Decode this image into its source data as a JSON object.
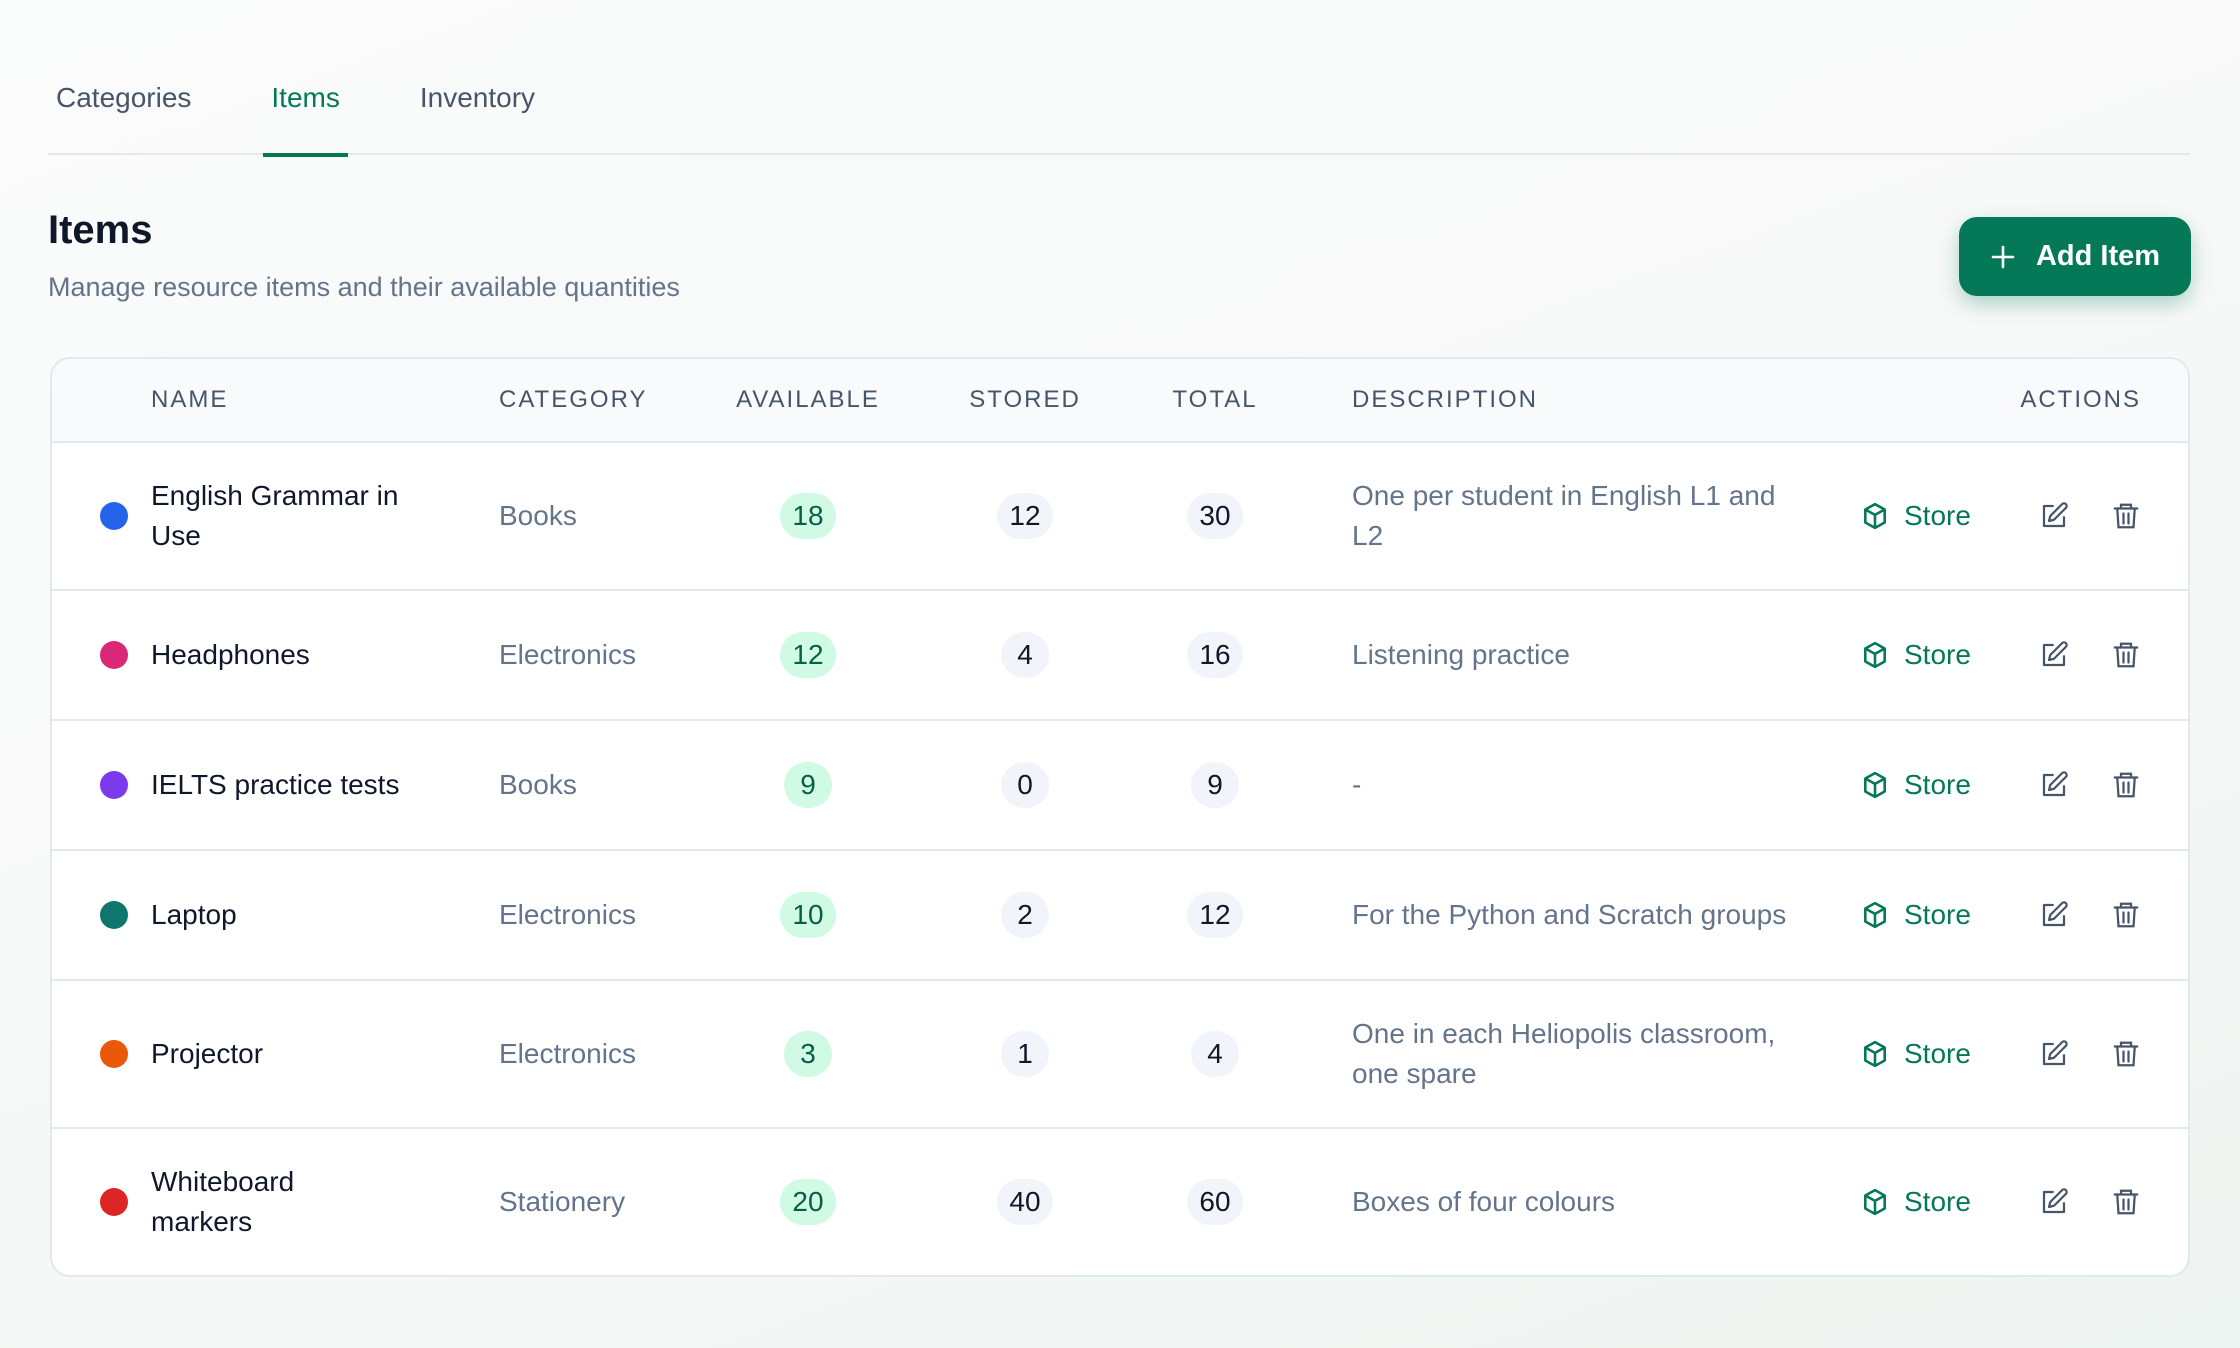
{
  "tabs": [
    "Categories",
    "Items",
    "Inventory"
  ],
  "active_tab": 1,
  "header": {
    "title": "Items",
    "subtitle": "Manage resource items and their available quantities",
    "button": "Add Item"
  },
  "table": {
    "columns": [
      "NAME",
      "CATEGORY",
      "AVAILABLE",
      "STORED",
      "TOTAL",
      "DESCRIPTION",
      "ACTIONS"
    ],
    "store_label": "Store",
    "rows": [
      {
        "color": "#2563eb",
        "name": "English Grammar in Use",
        "category": "Books",
        "available": "18",
        "stored": "12",
        "total": "30",
        "description": "One per student in English L1 and L2"
      },
      {
        "color": "#db2777",
        "name": "Headphones",
        "category": "Electronics",
        "available": "12",
        "stored": "4",
        "total": "16",
        "description": "Listening practice"
      },
      {
        "color": "#7c3aed",
        "name": "IELTS practice tests",
        "category": "Books",
        "available": "9",
        "stored": "0",
        "total": "9",
        "description": "-"
      },
      {
        "color": "#0f766e",
        "name": "Laptop",
        "category": "Electronics",
        "available": "10",
        "stored": "2",
        "total": "12",
        "description": "For the Python and Scratch groups"
      },
      {
        "color": "#ea580c",
        "name": "Projector",
        "category": "Electronics",
        "available": "3",
        "stored": "1",
        "total": "4",
        "description": "One in each Heliopolis classroom, one spare"
      },
      {
        "color": "#dc2626",
        "name": "Whiteboard markers",
        "category": "Stationery",
        "available": "20",
        "stored": "40",
        "total": "60",
        "description": "Boxes of four colours"
      }
    ]
  }
}
